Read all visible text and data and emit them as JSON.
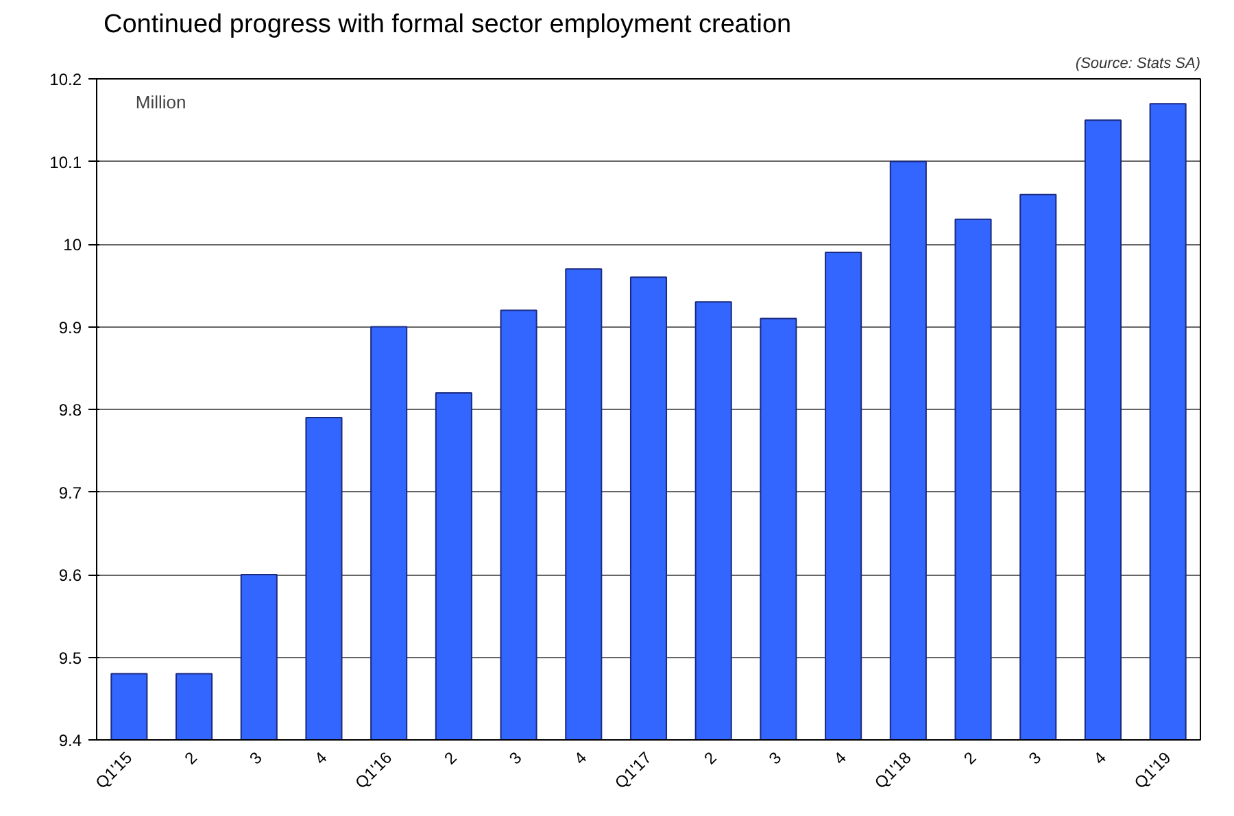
{
  "chart_data": {
    "type": "bar",
    "title": "Continued progress with formal sector employment creation",
    "annotations": [
      "Million",
      "(Source: Stats SA)"
    ],
    "categories": [
      "Q1'15",
      "2",
      "3",
      "4",
      "Q1'16",
      "2",
      "3",
      "4",
      "Q1'17",
      "2",
      "3",
      "4",
      "Q1'18",
      "2",
      "3",
      "4",
      "Q1'19"
    ],
    "values": [
      9.48,
      9.48,
      9.6,
      9.79,
      9.9,
      9.82,
      9.92,
      9.97,
      9.96,
      9.93,
      9.91,
      9.99,
      10.1,
      10.03,
      10.06,
      10.15,
      10.17
    ],
    "color": "#3366ff",
    "ylim": [
      9.4,
      10.2
    ],
    "yticks": [
      9.4,
      9.5,
      9.6,
      9.7,
      9.8,
      9.9,
      10,
      10.1,
      10.2
    ],
    "grid": "y"
  }
}
